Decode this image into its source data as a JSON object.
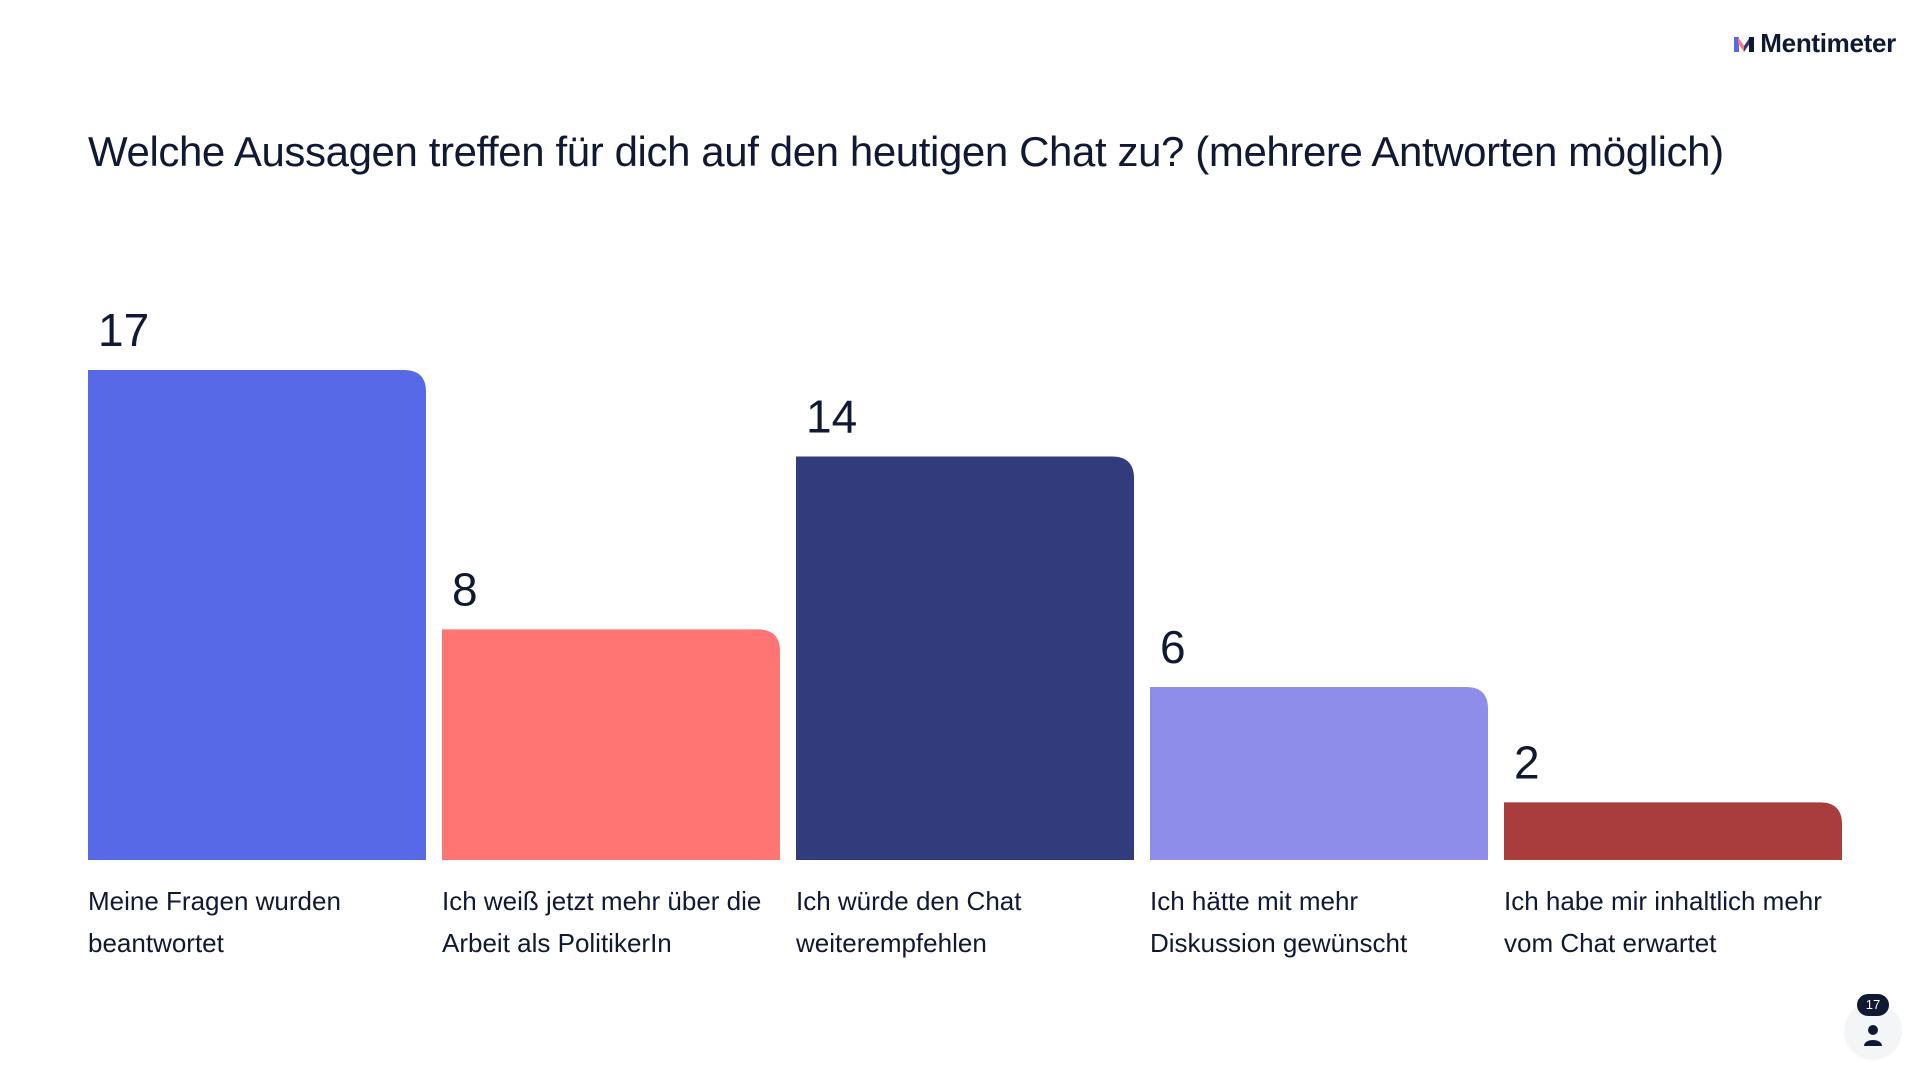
{
  "brand": {
    "name": "Mentimeter",
    "icon": "mentimeter-logo-icon"
  },
  "title": "Welche Aussagen treffen für dich auf den heutigen Chat zu? (mehrere Antworten möglich)",
  "chart_data": {
    "type": "bar",
    "title": "Welche Aussagen treffen für dich auf den heutigen Chat zu? (mehrere Antworten möglich)",
    "xlabel": "",
    "ylabel": "",
    "ylim": [
      0,
      17
    ],
    "grid": false,
    "categories": [
      "Meine Fragen wurden beantwortet",
      "Ich weiß jetzt mehr über die Arbeit als PolitikerIn",
      "Ich würde den Chat weiterempfehlen",
      "Ich hätte mit mehr Diskussion gewünscht",
      "Ich habe mir inhaltlich mehr vom Chat erwartet"
    ],
    "values": [
      17,
      8,
      14,
      6,
      2
    ],
    "colors": [
      "#5769e7",
      "#ff7573",
      "#323c7c",
      "#8e8de9",
      "#a93c3c"
    ]
  },
  "responses": {
    "count": "17",
    "icon": "person-icon"
  }
}
